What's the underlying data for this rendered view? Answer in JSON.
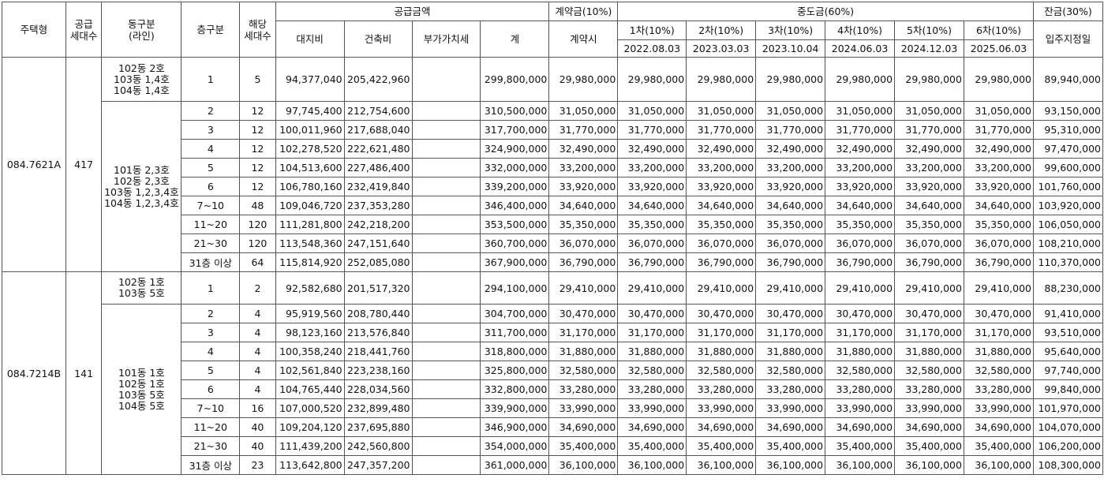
{
  "headers": {
    "type": "주택형",
    "supply_units": [
      "공급",
      "세대수"
    ],
    "building": [
      "동구분",
      "(라인)"
    ],
    "floor": "층구분",
    "units": [
      "해당",
      "세대수"
    ],
    "supply_price": "공급금액",
    "land": "대지비",
    "construction": "건축비",
    "vat": "부가가치세",
    "total": "계",
    "contract": "계약금(10%)",
    "contract_sub": "계약시",
    "middle": "중도금(60%)",
    "installments": [
      {
        "label": "1차(10%)",
        "date": "2022.08.03"
      },
      {
        "label": "2차(10%)",
        "date": "2023.03.03"
      },
      {
        "label": "3차(10%)",
        "date": "2023.10.04"
      },
      {
        "label": "4차(10%)",
        "date": "2024.06.03"
      },
      {
        "label": "5차(10%)",
        "date": "2024.12.03"
      },
      {
        "label": "6차(10%)",
        "date": "2025.06.03"
      }
    ],
    "balance": "잔금(30%)",
    "balance_sub": "입주지정일"
  },
  "groups": [
    {
      "type": "084.7621A",
      "supply_units": "417",
      "building_groups": [
        [
          "102동 2호",
          "103동 1,4호",
          "104동 1,4호"
        ],
        [
          "101동 2,3호",
          "102동 2,3호",
          "103동 1,2,3,4호",
          "104동 1,2,3,4호"
        ]
      ],
      "rows": [
        {
          "floor": "1",
          "units": "5",
          "land": "94,377,040",
          "construction": "205,422,960",
          "vat": "",
          "total": "299,800,000",
          "contract": "29,980,000",
          "installments": [
            "29,980,000",
            "29,980,000",
            "29,980,000",
            "29,980,000",
            "29,980,000",
            "29,980,000"
          ],
          "balance": "89,940,000"
        },
        {
          "floor": "2",
          "units": "12",
          "land": "97,745,400",
          "construction": "212,754,600",
          "vat": "",
          "total": "310,500,000",
          "contract": "31,050,000",
          "installments": [
            "31,050,000",
            "31,050,000",
            "31,050,000",
            "31,050,000",
            "31,050,000",
            "31,050,000"
          ],
          "balance": "93,150,000"
        },
        {
          "floor": "3",
          "units": "12",
          "land": "100,011,960",
          "construction": "217,688,040",
          "vat": "",
          "total": "317,700,000",
          "contract": "31,770,000",
          "installments": [
            "31,770,000",
            "31,770,000",
            "31,770,000",
            "31,770,000",
            "31,770,000",
            "31,770,000"
          ],
          "balance": "95,310,000"
        },
        {
          "floor": "4",
          "units": "12",
          "land": "102,278,520",
          "construction": "222,621,480",
          "vat": "",
          "total": "324,900,000",
          "contract": "32,490,000",
          "installments": [
            "32,490,000",
            "32,490,000",
            "32,490,000",
            "32,490,000",
            "32,490,000",
            "32,490,000"
          ],
          "balance": "97,470,000"
        },
        {
          "floor": "5",
          "units": "12",
          "land": "104,513,600",
          "construction": "227,486,400",
          "vat": "",
          "total": "332,000,000",
          "contract": "33,200,000",
          "installments": [
            "33,200,000",
            "33,200,000",
            "33,200,000",
            "33,200,000",
            "33,200,000",
            "33,200,000"
          ],
          "balance": "99,600,000"
        },
        {
          "floor": "6",
          "units": "12",
          "land": "106,780,160",
          "construction": "232,419,840",
          "vat": "",
          "total": "339,200,000",
          "contract": "33,920,000",
          "installments": [
            "33,920,000",
            "33,920,000",
            "33,920,000",
            "33,920,000",
            "33,920,000",
            "33,920,000"
          ],
          "balance": "101,760,000"
        },
        {
          "floor": "7~10",
          "units": "48",
          "land": "109,046,720",
          "construction": "237,353,280",
          "vat": "",
          "total": "346,400,000",
          "contract": "34,640,000",
          "installments": [
            "34,640,000",
            "34,640,000",
            "34,640,000",
            "34,640,000",
            "34,640,000",
            "34,640,000"
          ],
          "balance": "103,920,000"
        },
        {
          "floor": "11~20",
          "units": "120",
          "land": "111,281,800",
          "construction": "242,218,200",
          "vat": "",
          "total": "353,500,000",
          "contract": "35,350,000",
          "installments": [
            "35,350,000",
            "35,350,000",
            "35,350,000",
            "35,350,000",
            "35,350,000",
            "35,350,000"
          ],
          "balance": "106,050,000"
        },
        {
          "floor": "21~30",
          "units": "120",
          "land": "113,548,360",
          "construction": "247,151,640",
          "vat": "",
          "total": "360,700,000",
          "contract": "36,070,000",
          "installments": [
            "36,070,000",
            "36,070,000",
            "36,070,000",
            "36,070,000",
            "36,070,000",
            "36,070,000"
          ],
          "balance": "108,210,000"
        },
        {
          "floor": "31층 이상",
          "units": "64",
          "land": "115,814,920",
          "construction": "252,085,080",
          "vat": "",
          "total": "367,900,000",
          "contract": "36,790,000",
          "installments": [
            "36,790,000",
            "36,790,000",
            "36,790,000",
            "36,790,000",
            "36,790,000",
            "36,790,000"
          ],
          "balance": "110,370,000"
        }
      ]
    },
    {
      "type": "084.7214B",
      "supply_units": "141",
      "building_groups": [
        [
          "102동 1호",
          "103동 5호"
        ],
        [
          "101동 1호",
          "102동 1호",
          "103동 5호",
          "104동 5호"
        ]
      ],
      "rows": [
        {
          "floor": "1",
          "units": "2",
          "land": "92,582,680",
          "construction": "201,517,320",
          "vat": "",
          "total": "294,100,000",
          "contract": "29,410,000",
          "installments": [
            "29,410,000",
            "29,410,000",
            "29,410,000",
            "29,410,000",
            "29,410,000",
            "29,410,000"
          ],
          "balance": "88,230,000"
        },
        {
          "floor": "2",
          "units": "4",
          "land": "95,919,560",
          "construction": "208,780,440",
          "vat": "",
          "total": "304,700,000",
          "contract": "30,470,000",
          "installments": [
            "30,470,000",
            "30,470,000",
            "30,470,000",
            "30,470,000",
            "30,470,000",
            "30,470,000"
          ],
          "balance": "91,410,000"
        },
        {
          "floor": "3",
          "units": "4",
          "land": "98,123,160",
          "construction": "213,576,840",
          "vat": "",
          "total": "311,700,000",
          "contract": "31,170,000",
          "installments": [
            "31,170,000",
            "31,170,000",
            "31,170,000",
            "31,170,000",
            "31,170,000",
            "31,170,000"
          ],
          "balance": "93,510,000"
        },
        {
          "floor": "4",
          "units": "4",
          "land": "100,358,240",
          "construction": "218,441,760",
          "vat": "",
          "total": "318,800,000",
          "contract": "31,880,000",
          "installments": [
            "31,880,000",
            "31,880,000",
            "31,880,000",
            "31,880,000",
            "31,880,000",
            "31,880,000"
          ],
          "balance": "95,640,000"
        },
        {
          "floor": "5",
          "units": "4",
          "land": "102,561,840",
          "construction": "223,238,160",
          "vat": "",
          "total": "325,800,000",
          "contract": "32,580,000",
          "installments": [
            "32,580,000",
            "32,580,000",
            "32,580,000",
            "32,580,000",
            "32,580,000",
            "32,580,000"
          ],
          "balance": "97,740,000"
        },
        {
          "floor": "6",
          "units": "4",
          "land": "104,765,440",
          "construction": "228,034,560",
          "vat": "",
          "total": "332,800,000",
          "contract": "33,280,000",
          "installments": [
            "33,280,000",
            "33,280,000",
            "33,280,000",
            "33,280,000",
            "33,280,000",
            "33,280,000"
          ],
          "balance": "99,840,000"
        },
        {
          "floor": "7~10",
          "units": "16",
          "land": "107,000,520",
          "construction": "232,899,480",
          "vat": "",
          "total": "339,900,000",
          "contract": "33,990,000",
          "installments": [
            "33,990,000",
            "33,990,000",
            "33,990,000",
            "33,990,000",
            "33,990,000",
            "33,990,000"
          ],
          "balance": "101,970,000"
        },
        {
          "floor": "11~20",
          "units": "40",
          "land": "109,204,120",
          "construction": "237,695,880",
          "vat": "",
          "total": "346,900,000",
          "contract": "34,690,000",
          "installments": [
            "34,690,000",
            "34,690,000",
            "34,690,000",
            "34,690,000",
            "34,690,000",
            "34,690,000"
          ],
          "balance": "104,070,000"
        },
        {
          "floor": "21~30",
          "units": "40",
          "land": "111,439,200",
          "construction": "242,560,800",
          "vat": "",
          "total": "354,000,000",
          "contract": "35,400,000",
          "installments": [
            "35,400,000",
            "35,400,000",
            "35,400,000",
            "35,400,000",
            "35,400,000",
            "35,400,000"
          ],
          "balance": "106,200,000"
        },
        {
          "floor": "31층 이상",
          "units": "23",
          "land": "113,642,800",
          "construction": "247,357,200",
          "vat": "",
          "total": "361,000,000",
          "contract": "36,100,000",
          "installments": [
            "36,100,000",
            "36,100,000",
            "36,100,000",
            "36,100,000",
            "36,100,000",
            "36,100,000"
          ],
          "balance": "108,300,000"
        }
      ]
    }
  ]
}
